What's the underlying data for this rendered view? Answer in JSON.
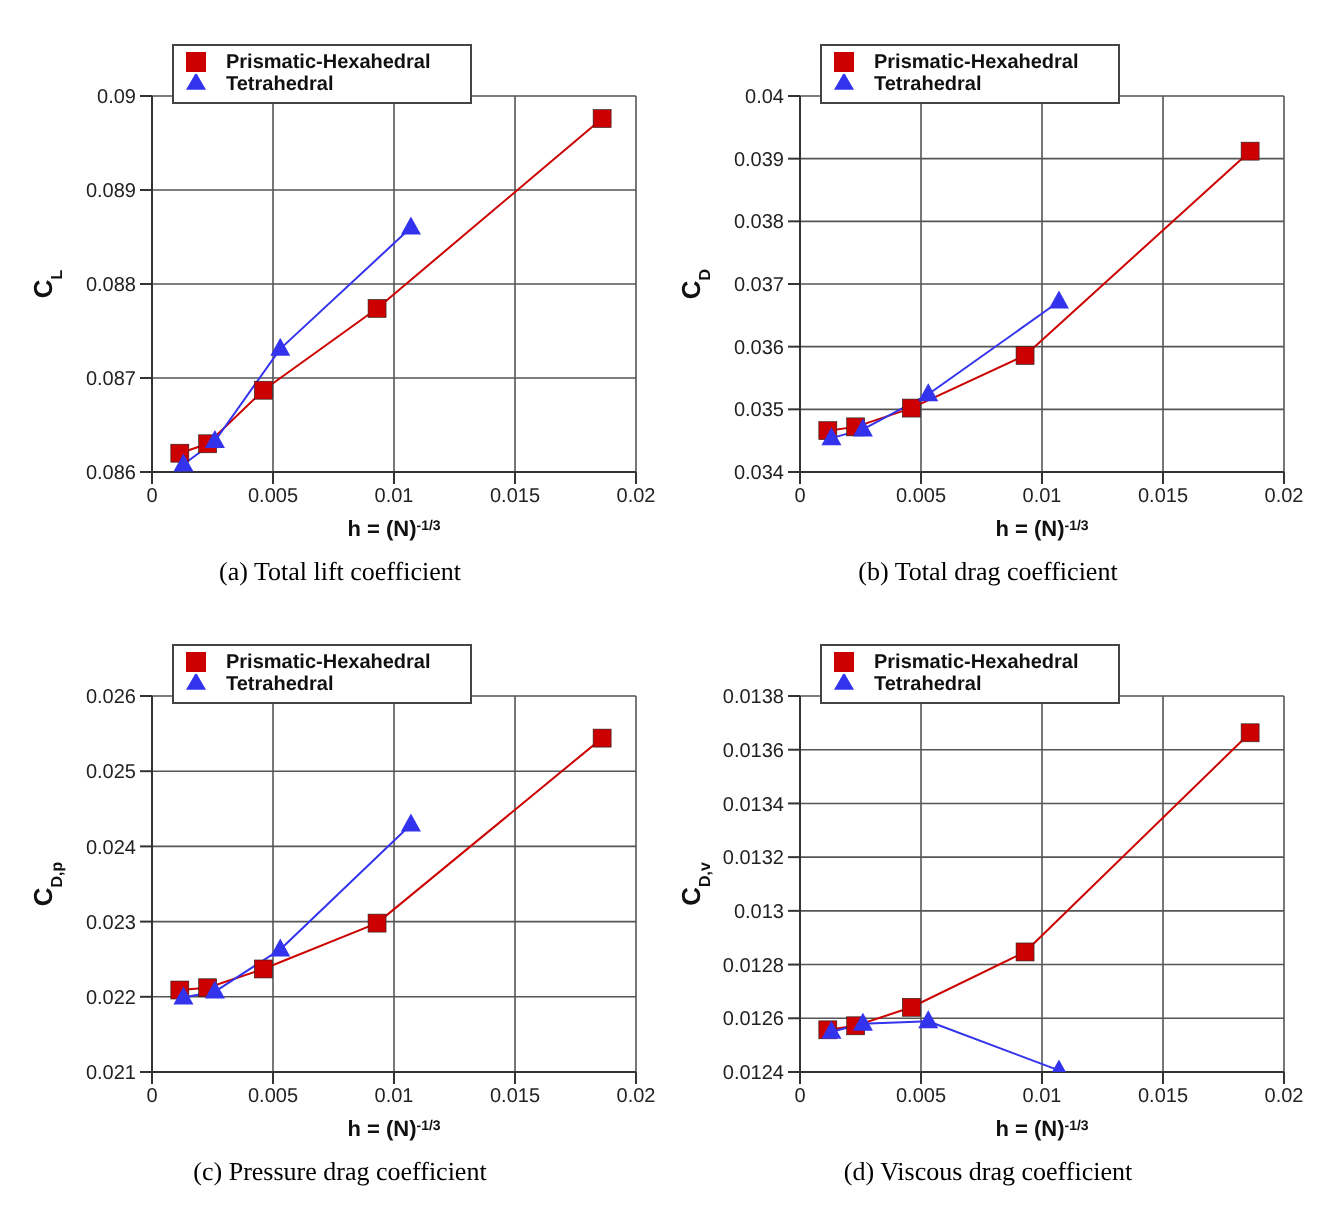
{
  "chart_data": [
    {
      "type": "line",
      "title": "(a) Total lift coefficient",
      "xlabel": "h = (N)$^{-1/3}$",
      "ylabel": "C$_{L}$",
      "xlim": [
        0,
        0.02
      ],
      "xticks": [
        0,
        0.005,
        0.01,
        0.015,
        0.02
      ],
      "ylim": [
        0.086,
        0.09
      ],
      "yticks": [
        0.086,
        0.087,
        0.088,
        0.089,
        0.09
      ],
      "grid": true,
      "legend": "top left",
      "line_style": "solid",
      "series": [
        {
          "name": "Prismatic-Hexahedral",
          "color": "#cc0000",
          "marker": "square",
          "x": [
            0.00115,
            0.0023,
            0.0046,
            0.0093,
            0.0186
          ],
          "values": [
            0.0862,
            0.0863,
            0.08687,
            0.08774,
            0.08976
          ]
        },
        {
          "name": "Tetrahedral",
          "color": "#3333ee",
          "marker": "triangle",
          "x": [
            0.0013,
            0.0026,
            0.0053,
            0.0107
          ],
          "values": [
            0.08608,
            0.08633,
            0.08731,
            0.0886
          ]
        }
      ]
    },
    {
      "type": "line",
      "title": "(b) Total drag coefficient",
      "xlabel": "h = (N)$^{-1/3}$",
      "ylabel": "C$_{D}$",
      "xlim": [
        0,
        0.02
      ],
      "xticks": [
        0,
        0.005,
        0.01,
        0.015,
        0.02
      ],
      "ylim": [
        0.034,
        0.04
      ],
      "yticks": [
        0.034,
        0.035,
        0.036,
        0.037,
        0.038,
        0.039,
        0.04
      ],
      "grid": true,
      "legend": "top left",
      "line_style": "solid",
      "series": [
        {
          "name": "Prismatic-Hexahedral",
          "color": "#cc0000",
          "marker": "square",
          "x": [
            0.00115,
            0.0023,
            0.0046,
            0.0093,
            0.0186
          ],
          "values": [
            0.03466,
            0.03472,
            0.03502,
            0.03586,
            0.03912
          ]
        },
        {
          "name": "Tetrahedral",
          "color": "#3333ee",
          "marker": "triangle",
          "x": [
            0.0013,
            0.0026,
            0.0053,
            0.0107
          ],
          "values": [
            0.03454,
            0.03468,
            0.03524,
            0.03672
          ]
        }
      ]
    },
    {
      "type": "line",
      "title": "(c) Pressure drag coefficient",
      "xlabel": "h = (N)$^{-1/3}$",
      "ylabel": "C$_{D,p}$",
      "xlim": [
        0,
        0.02
      ],
      "xticks": [
        0,
        0.005,
        0.01,
        0.015,
        0.02
      ],
      "ylim": [
        0.021,
        0.026
      ],
      "yticks": [
        0.021,
        0.022,
        0.023,
        0.024,
        0.025,
        0.026
      ],
      "grid": true,
      "legend": "top left",
      "line_style": "solid",
      "series": [
        {
          "name": "Prismatic-Hexahedral",
          "color": "#cc0000",
          "marker": "square",
          "x": [
            0.00115,
            0.0023,
            0.0046,
            0.0093,
            0.0186
          ],
          "values": [
            0.02209,
            0.02212,
            0.02237,
            0.02298,
            0.02544
          ]
        },
        {
          "name": "Tetrahedral",
          "color": "#3333ee",
          "marker": "triangle",
          "x": [
            0.0013,
            0.0026,
            0.0053,
            0.0107
          ],
          "values": [
            0.02199,
            0.02207,
            0.02263,
            0.02429
          ]
        }
      ]
    },
    {
      "type": "line",
      "title": "(d) Viscous drag coefficient",
      "xlabel": "h = (N)$^{-1/3}$",
      "ylabel": "C$_{D,v}$",
      "xlim": [
        0,
        0.02
      ],
      "xticks": [
        0,
        0.005,
        0.01,
        0.015,
        0.02
      ],
      "ylim": [
        0.0124,
        0.0138
      ],
      "yticks": [
        0.0124,
        0.0126,
        0.0128,
        0.013,
        0.0132,
        0.0134,
        0.0136,
        0.0138
      ],
      "grid": true,
      "legend": "top left",
      "line_style": "solid",
      "series": [
        {
          "name": "Prismatic-Hexahedral",
          "color": "#cc0000",
          "marker": "square",
          "x": [
            0.00115,
            0.0023,
            0.0046,
            0.0093,
            0.0186
          ],
          "values": [
            0.012557,
            0.012572,
            0.012641,
            0.012847,
            0.013663
          ]
        },
        {
          "name": "Tetrahedral",
          "color": "#3333ee",
          "marker": "triangle",
          "x": [
            0.0013,
            0.0026,
            0.0053,
            0.0107
          ],
          "values": [
            0.01255,
            0.01258,
            0.012589,
            0.012406
          ]
        }
      ]
    }
  ]
}
